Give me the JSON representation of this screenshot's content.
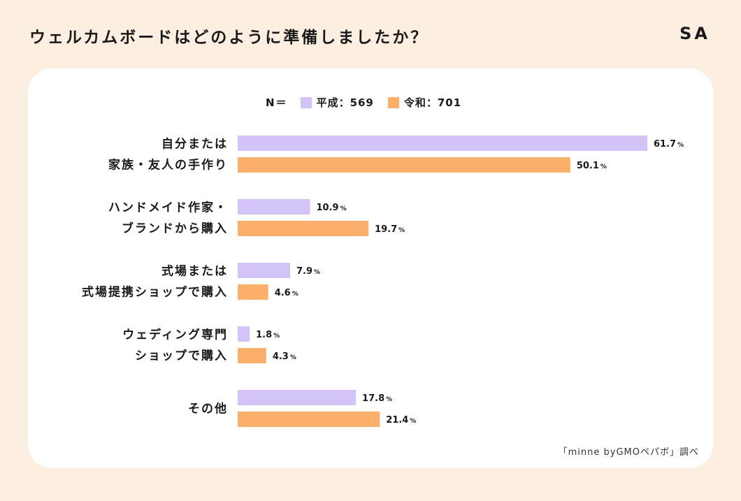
{
  "title": "ウェルカムボードはどのように準備しましたか？",
  "badge": "SA",
  "legend": {
    "n_label": "N＝",
    "items": [
      {
        "label": "平成：569",
        "color": "#d3c3f7"
      },
      {
        "label": "令和：701",
        "color": "#fcae6b"
      }
    ]
  },
  "source": "「minne byGMOペパボ」調べ",
  "chart_data": {
    "type": "bar",
    "orientation": "horizontal",
    "categories": [
      [
        "自分または",
        "家族・友人の手作り"
      ],
      [
        "ハンドメイド作家・",
        "ブランドから購入"
      ],
      [
        "式場または",
        "式場提携ショップで購入"
      ],
      [
        "ウェディング専門",
        "ショップで購入"
      ],
      [
        "その他"
      ]
    ],
    "series": [
      {
        "name": "平成：569",
        "color": "#d3c3f7",
        "values": [
          61.7,
          10.9,
          7.9,
          1.8,
          17.8
        ]
      },
      {
        "name": "令和：701",
        "color": "#fcae6b",
        "values": [
          50.1,
          19.7,
          4.6,
          4.3,
          21.4
        ]
      }
    ],
    "unit": "%",
    "xlim": [
      0,
      61.7
    ],
    "grid": false,
    "legend_position": "top"
  }
}
